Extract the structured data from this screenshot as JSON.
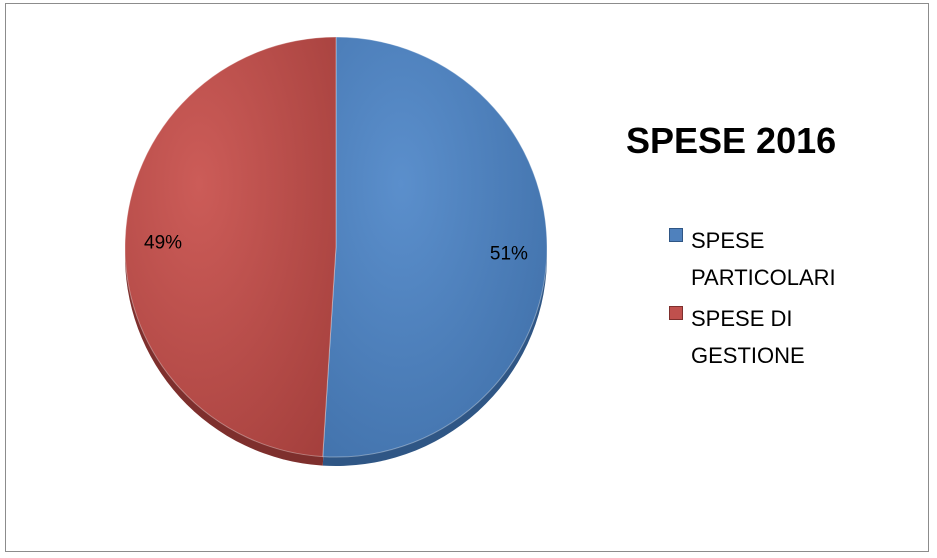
{
  "chart_data": {
    "type": "pie",
    "title": "SPESE 2016",
    "categories": [
      "SPESE PARTICOLARI",
      "SPESE DI GESTIONE"
    ],
    "values": [
      51,
      49
    ],
    "data_labels": [
      "51%",
      "49%"
    ],
    "colors": [
      "#4F81BD",
      "#C0504D"
    ],
    "legend_position": "right"
  }
}
